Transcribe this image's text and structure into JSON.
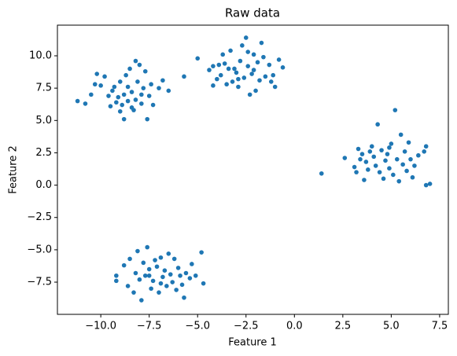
{
  "chart_data": {
    "type": "scatter",
    "title": "Raw data",
    "xlabel": "Feature 1",
    "ylabel": "Feature 2",
    "color": "#1f77b4",
    "grid": false,
    "xlim": [
      -12.24,
      7.95
    ],
    "ylim": [
      -9.99,
      12.37
    ],
    "xticks": [
      {
        "value": -10,
        "label": "−10.0"
      },
      {
        "value": -7.5,
        "label": "−7.5"
      },
      {
        "value": -5,
        "label": "−5.0"
      },
      {
        "value": -2.5,
        "label": "−2.5"
      },
      {
        "value": 0,
        "label": "0.0"
      },
      2.5,
      {
        "value": 5,
        "label": "5.0"
      },
      7.5
    ],
    "yticks": [
      {
        "value": -7.5,
        "label": "−7.5"
      },
      {
        "value": -5,
        "label": "−5.0"
      },
      {
        "value": -2.5,
        "label": "−2.5"
      },
      {
        "value": 0,
        "label": "0.0"
      },
      2.5,
      {
        "value": 5,
        "label": "5.0"
      },
      7.5,
      {
        "value": 10,
        "label": "10.0"
      }
    ],
    "x": [
      -11.2,
      -10.8,
      -10.5,
      -10.3,
      -10.2,
      -10.0,
      -9.8,
      -9.6,
      -9.4,
      -9.3,
      -9.2,
      -9.1,
      -9.0,
      -8.9,
      -8.8,
      -8.7,
      -8.6,
      -8.5,
      -8.4,
      -8.3,
      -8.2,
      -8.1,
      -8.0,
      -7.9,
      -7.8,
      -7.7,
      -7.6,
      -7.5,
      -7.4,
      -7.3,
      -7.0,
      -6.8,
      -6.5,
      -8.8,
      -8.6,
      -9.5,
      -8.2,
      -7.9,
      -9.0,
      -8.4,
      -5.0,
      -5.7,
      -4.4,
      -4.2,
      -4.0,
      -3.8,
      -3.6,
      -3.5,
      -3.3,
      -3.2,
      -3.1,
      -3.0,
      -2.9,
      -2.8,
      -2.7,
      -2.6,
      -2.5,
      -2.4,
      -2.3,
      -2.2,
      -2.1,
      -2.0,
      -1.9,
      -1.8,
      -1.7,
      -1.6,
      -1.5,
      -1.3,
      -1.1,
      -1.0,
      -0.8,
      -0.6,
      -3.4,
      -2.9,
      -2.4,
      -4.2,
      -3.7,
      -2.1,
      -1.2,
      -3.9,
      1.4,
      2.6,
      3.1,
      3.2,
      3.3,
      3.5,
      3.6,
      3.7,
      3.8,
      3.9,
      4.0,
      4.1,
      4.2,
      4.3,
      4.4,
      4.5,
      4.6,
      4.7,
      4.8,
      4.9,
      5.0,
      5.1,
      5.2,
      5.3,
      5.4,
      5.5,
      5.6,
      5.7,
      5.8,
      5.9,
      6.0,
      6.1,
      6.2,
      6.4,
      6.7,
      6.8,
      6.8,
      7.0,
      3.4,
      4.9,
      -9.2,
      -9.2,
      -8.8,
      -8.6,
      -8.5,
      -8.3,
      -8.2,
      -8.1,
      -8.0,
      -7.9,
      -7.8,
      -7.7,
      -7.6,
      -7.5,
      -7.4,
      -7.3,
      -7.2,
      -7.1,
      -7.0,
      -6.9,
      -6.8,
      -6.7,
      -6.6,
      -6.5,
      -6.4,
      -6.3,
      -6.2,
      -6.1,
      -6.0,
      -5.9,
      -5.8,
      -5.7,
      -5.6,
      -5.4,
      -5.3,
      -5.1,
      -4.8,
      -4.7,
      -6.9,
      -7.5
    ],
    "y": [
      6.5,
      6.3,
      7.0,
      7.8,
      8.6,
      7.7,
      8.4,
      6.9,
      7.3,
      7.6,
      6.4,
      6.8,
      5.7,
      6.2,
      7.0,
      8.5,
      6.5,
      9.0,
      7.2,
      5.8,
      6.6,
      8.0,
      9.3,
      6.3,
      7.5,
      8.8,
      5.1,
      6.9,
      7.8,
      6.2,
      7.5,
      8.1,
      7.3,
      5.1,
      7.6,
      6.1,
      9.6,
      7.0,
      8.0,
      6.0,
      9.8,
      8.4,
      8.9,
      9.2,
      8.2,
      8.5,
      9.4,
      7.8,
      10.4,
      8.0,
      9.0,
      8.7,
      7.6,
      9.6,
      10.8,
      8.3,
      11.4,
      9.2,
      7.0,
      8.6,
      10.1,
      7.3,
      9.5,
      8.1,
      11.0,
      9.9,
      8.4,
      9.3,
      8.5,
      7.6,
      9.7,
      9.1,
      9.0,
      8.2,
      10.3,
      7.7,
      10.1,
      8.9,
      8.0,
      9.3,
      0.9,
      2.1,
      1.4,
      1.0,
      2.8,
      2.4,
      0.4,
      1.8,
      1.2,
      2.6,
      3.0,
      2.2,
      1.5,
      4.7,
      1.0,
      2.7,
      0.5,
      1.9,
      2.4,
      1.3,
      3.2,
      0.8,
      5.8,
      2.0,
      0.3,
      3.9,
      1.6,
      2.6,
      1.1,
      3.3,
      2.0,
      0.6,
      1.5,
      2.3,
      2.6,
      3.0,
      0.0,
      0.1,
      2.0,
      2.9,
      -7.0,
      -7.4,
      -6.2,
      -7.8,
      -5.7,
      -8.3,
      -6.8,
      -5.1,
      -7.3,
      -8.9,
      -6.0,
      -7.0,
      -4.8,
      -6.5,
      -8.0,
      -7.4,
      -5.8,
      -6.3,
      -8.3,
      -5.6,
      -7.1,
      -6.6,
      -7.8,
      -5.3,
      -6.9,
      -7.5,
      -5.7,
      -8.1,
      -6.4,
      -7.0,
      -7.7,
      -8.7,
      -6.8,
      -7.2,
      -6.1,
      -7.0,
      -5.2,
      -7.6,
      -7.6,
      -7.0
    ]
  }
}
